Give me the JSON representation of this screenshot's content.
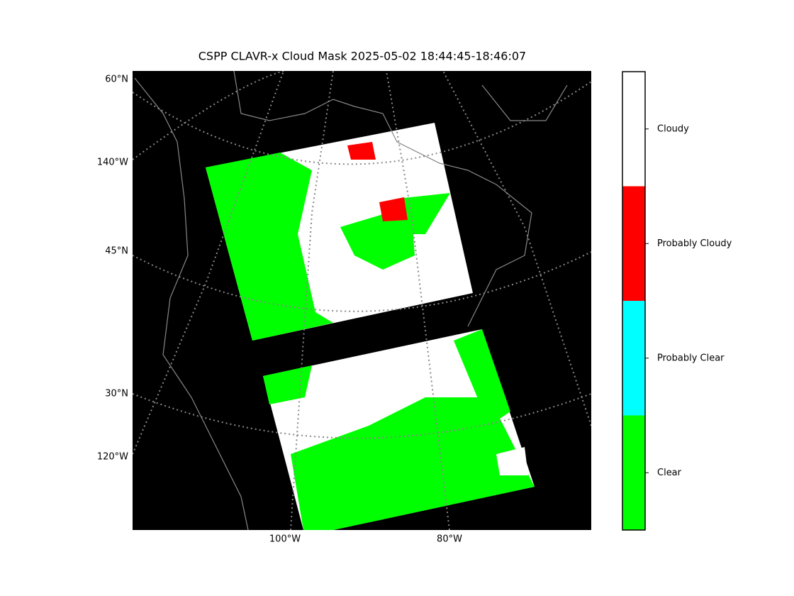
{
  "title": "CSPP CLAVR-x Cloud Mask 2025-05-02 18:44:45-18:46:07",
  "map": {
    "left_labels": [
      "60°N",
      "140°W",
      "45°N",
      "30°N",
      "120°W"
    ],
    "bottom_labels": [
      "100°W",
      "80°W"
    ]
  },
  "colorbar": {
    "classes": [
      {
        "label": "Clear",
        "color": "#00ff00"
      },
      {
        "label": "Probably Clear",
        "color": "#00ffff"
      },
      {
        "label": "Probably Cloudy",
        "color": "#ff0000"
      },
      {
        "label": "Cloudy",
        "color": "#ffffff"
      }
    ]
  }
}
